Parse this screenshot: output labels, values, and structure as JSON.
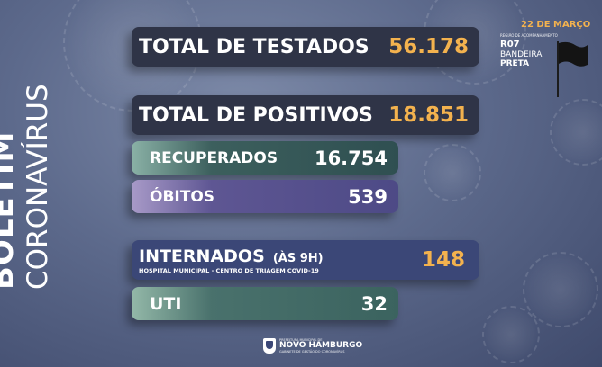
{
  "side": {
    "title": "BOLETIM",
    "subtitle": "CORONAVÍRUS"
  },
  "header": {
    "date": "22 DE MARÇO",
    "region_caption": "REGIÃO DE ACOMPANHAMENTO",
    "region_code": "R07",
    "flag_label": "BANDEIRA",
    "flag_color": "PRETA"
  },
  "stats": {
    "testados": {
      "label": "TOTAL DE TESTADOS",
      "value": "56.178"
    },
    "positivos": {
      "label": "TOTAL DE POSITIVOS",
      "value": "18.851"
    },
    "recuperados": {
      "label": "RECUPERADOS",
      "value": "16.754"
    },
    "obitos": {
      "label": "ÓBITOS",
      "value": "539"
    },
    "internados": {
      "label": "INTERNADOS",
      "label_suffix": "(ÀS 9H)",
      "sublabel": "HOSPITAL MUNICIPAL - CENTRO DE TRIAGEM COVID-19",
      "value": "148"
    },
    "uti": {
      "label": "UTI",
      "value": "32"
    }
  },
  "footer": {
    "top": "PREFEITURA MUNICIPAL DE",
    "name": "NOVO HAMBURGO",
    "bottom": "GABINETE DE GESTÃO DO CORONAVÍRUS"
  },
  "colors": {
    "accent_orange": "#f3b24e",
    "dark_bar": "#2f3447",
    "navy_bar": "#3b4777"
  }
}
